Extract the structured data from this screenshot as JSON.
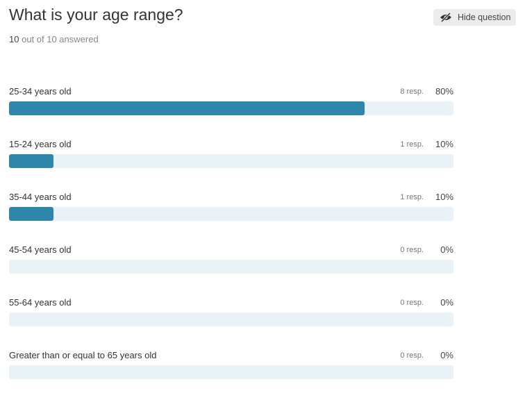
{
  "header": {
    "title": "What is your age range?",
    "button": "Hide question",
    "answered_count": 10,
    "answered_text": "out of 10 answered"
  },
  "chart_data": {
    "type": "bar",
    "orientation": "horizontal",
    "categories": [
      "25-34 years old",
      "15-24 years old",
      "35-44 years old",
      "45-54 years old",
      "55-64 years old",
      "Greater than or equal to 65 years old"
    ],
    "values": [
      80,
      10,
      10,
      0,
      0,
      0
    ],
    "value_labels": [
      "80%",
      "10%",
      "10%",
      "0%",
      "0%",
      "0%"
    ],
    "responses": [
      8,
      1,
      1,
      0,
      0,
      0
    ],
    "response_labels": [
      "8 resp.",
      "1 resp.",
      "1 resp.",
      "0 resp.",
      "0 resp.",
      "0 resp."
    ],
    "xlim": [
      0,
      100
    ],
    "color": "#2e86ab",
    "track_color": "#e8f2f7"
  }
}
